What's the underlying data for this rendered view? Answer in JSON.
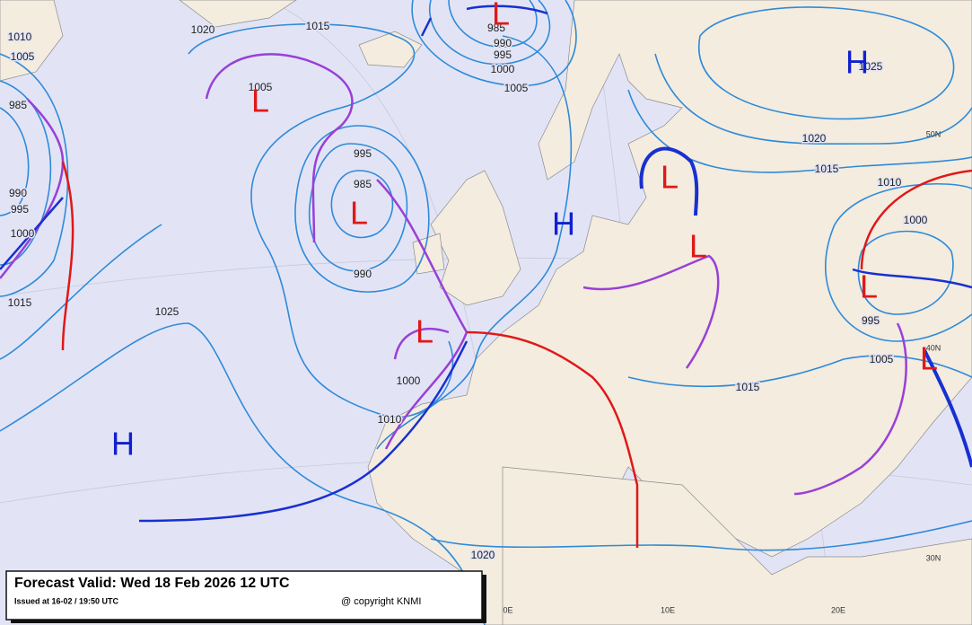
{
  "legend": {
    "title": "Forecast Valid:  Wed 18 Feb 2026 12 UTC",
    "issued": "Issued at 16-02 / 19:50 UTC",
    "copyright": "@ copyright KNMI"
  },
  "systems": [
    "L",
    "L",
    "L",
    "L",
    "L",
    "L",
    "L",
    "L",
    "H",
    "H",
    "H"
  ],
  "isobar_labels": [
    1010,
    1005,
    985,
    990,
    995,
    1000,
    1015,
    1020,
    1015,
    1005,
    985,
    990,
    995,
    1000,
    1005,
    995,
    985,
    990,
    1025,
    1000,
    1010,
    1020,
    1025,
    1020,
    1015,
    1010,
    1000,
    995,
    1005,
    1015
  ],
  "graticule_labels": [
    "50N",
    "40N",
    "30N",
    "0E",
    "10E",
    "20E"
  ]
}
